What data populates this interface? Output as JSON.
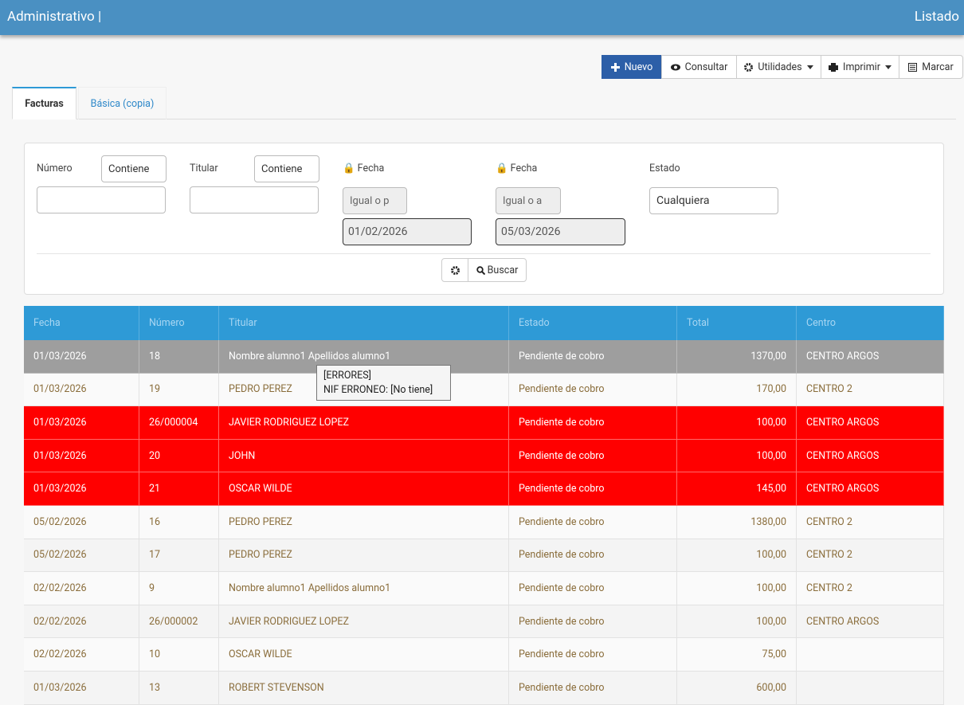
{
  "header": {
    "title": "Administrativo |",
    "right": "Listado"
  },
  "toolbar": [
    "Nuevo",
    "Consultar",
    "Utilidades",
    "Imprimir",
    "Marcar"
  ],
  "tabs": [
    "Facturas",
    "Básica (copia)"
  ],
  "filters": {
    "numero": {
      "label": "Número",
      "operator": "Contiene"
    },
    "titular": {
      "label": "Titular",
      "operator": "Contiene"
    },
    "fecha_desde": {
      "label": "Fecha",
      "operator": "Igual o p",
      "value": "01/02/2026"
    },
    "fecha_hasta": {
      "label": "Fecha",
      "operator": "Igual o a",
      "value": "05/03/2026"
    },
    "estado": {
      "label": "Estado",
      "value": "Cualquiera"
    },
    "search": "Buscar"
  },
  "table": {
    "columns": [
      "Fecha",
      "Número",
      "Titular",
      "Estado",
      "Total",
      "Centro"
    ],
    "rows": [
      [
        "01/03/2026",
        "18",
        "Nombre alumno1 Apellidos alumno1",
        "Pendiente de cobro",
        "1370,00",
        "CENTRO ARGOS"
      ],
      [
        "01/03/2026",
        "19",
        "PEDRO PEREZ",
        "Pendiente de cobro",
        "170,00",
        "CENTRO 2"
      ],
      [
        "01/03/2026",
        "26/000004",
        "JAVIER RODRIGUEZ LOPEZ",
        "Pendiente de cobro",
        "100,00",
        "CENTRO ARGOS"
      ],
      [
        "01/03/2026",
        "20",
        "JOHN",
        "Pendiente de cobro",
        "100,00",
        "CENTRO ARGOS"
      ],
      [
        "01/03/2026",
        "21",
        "OSCAR WILDE",
        "Pendiente de cobro",
        "145,00",
        "CENTRO ARGOS"
      ],
      [
        "05/02/2026",
        "16",
        "PEDRO PEREZ",
        "Pendiente de cobro",
        "1380,00",
        "CENTRO 2"
      ],
      [
        "05/02/2026",
        "17",
        "PEDRO PEREZ",
        "Pendiente de cobro",
        "100,00",
        "CENTRO 2"
      ],
      [
        "02/02/2026",
        "9",
        "Nombre alumno1 Apellidos alumno1",
        "Pendiente de cobro",
        "100,00",
        "CENTRO 2"
      ],
      [
        "02/02/2026",
        "26/000002",
        "JAVIER RODRIGUEZ LOPEZ",
        "Pendiente de cobro",
        "100,00",
        "CENTRO ARGOS"
      ],
      [
        "02/02/2026",
        "10",
        "OSCAR WILDE",
        "Pendiente de cobro",
        "75,00",
        null
      ],
      [
        "01/03/2026",
        "13",
        "ROBERT STEVENSON",
        "Pendiente de cobro",
        "600,00",
        null
      ]
    ]
  },
  "tooltip": [
    "[ERRORES]",
    "NIF ERRONEO: [No tiene]"
  ]
}
